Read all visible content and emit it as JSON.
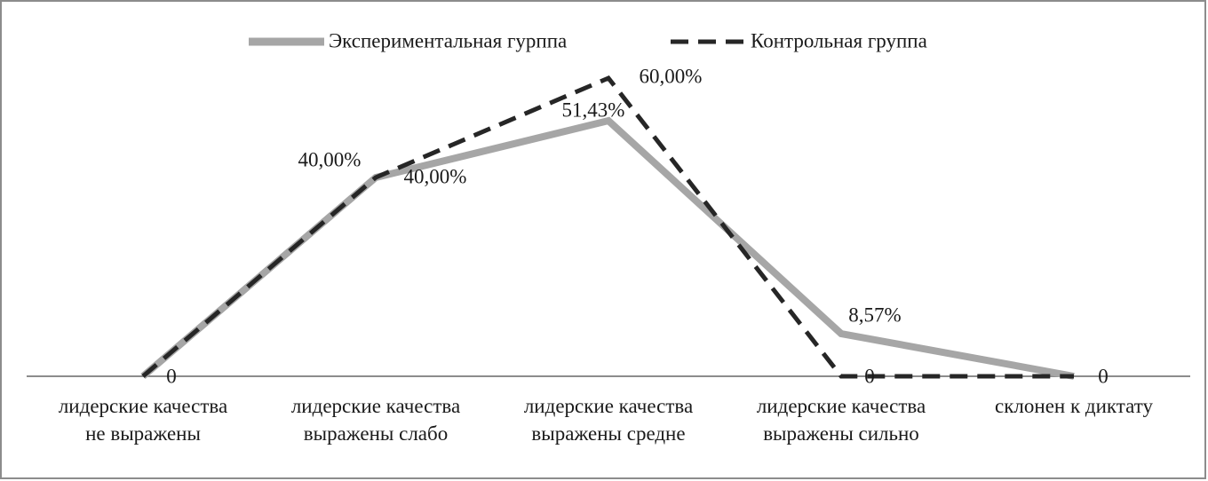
{
  "chart_data": {
    "type": "line",
    "categories": [
      "лидерские качества не выражены",
      "лидерские качества выражены слабо",
      "лидерские качества выражены средне",
      "лидерские качества выражены сильно",
      "склонен к диктату"
    ],
    "series": [
      {
        "name": "Экспериментальная гурппа",
        "color": "#a6a6a6",
        "dashed": false,
        "values": [
          0,
          40,
          51.43,
          8.57,
          0
        ],
        "value_labels": [
          "0",
          "40,00%",
          "51,43%",
          "8,57%",
          "0"
        ]
      },
      {
        "name": "Контрольная группа",
        "color": "#262626",
        "dashed": true,
        "values": [
          0,
          40,
          60,
          0,
          0
        ],
        "value_labels": [
          null,
          "40,00%",
          "60,00%",
          "0",
          null
        ]
      }
    ],
    "ylim": [
      0,
      60
    ],
    "legend": "top"
  }
}
